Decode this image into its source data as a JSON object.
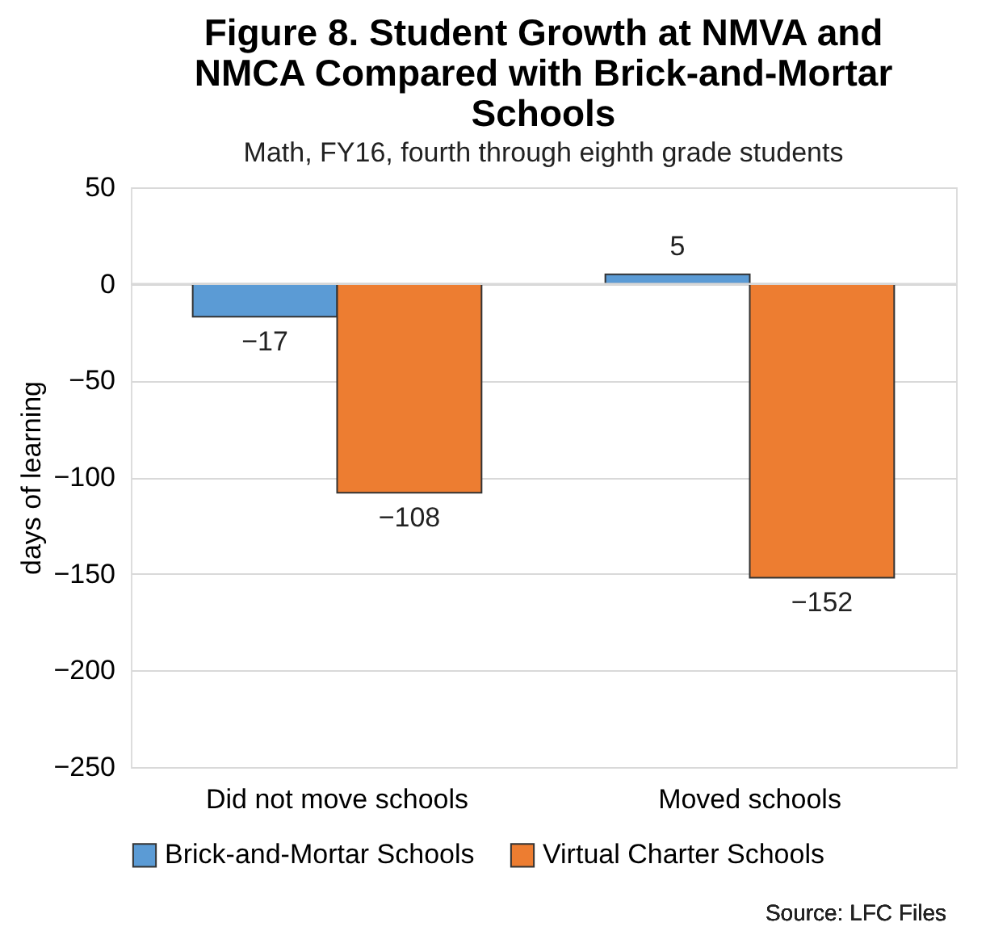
{
  "chart_data": {
    "type": "bar",
    "title": "Figure 8. Student Growth at NMVA and NMCA Compared with Brick-and-Mortar Schools",
    "subtitle": "Math, FY16, fourth through eighth grade students",
    "ylabel": "days of learning",
    "categories": [
      "Did not move schools",
      "Moved schools"
    ],
    "series": [
      {
        "name": "Brick-and-Mortar Schools",
        "color": "#5b9bd5",
        "values": [
          -17,
          5
        ]
      },
      {
        "name": "Virtual Charter Schools",
        "color": "#ed7d31",
        "values": [
          -108,
          -152
        ]
      }
    ],
    "ylim": [
      -250,
      50
    ],
    "yticks": [
      -250,
      -200,
      -150,
      -100,
      -50,
      0,
      50
    ],
    "grid": "y",
    "legend": "bottom",
    "data_labels": true,
    "annotations": [
      "Source: LFC Files"
    ]
  }
}
